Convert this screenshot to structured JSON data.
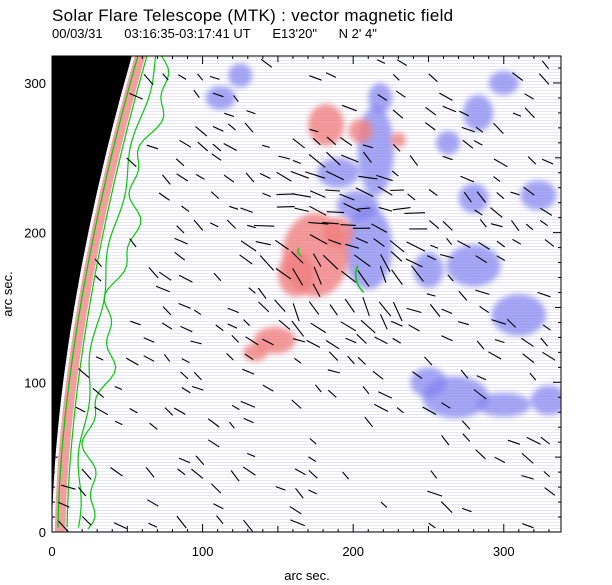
{
  "header": {
    "title": "Solar Flare Telescope (MTK) : vector magnetic field",
    "date": "00/03/31",
    "time_range": "03:16:35-03:17:41 UT",
    "position_e": "E13'20\"",
    "position_n": "N 2' 4\""
  },
  "chart_data": {
    "type": "heatmap",
    "title": "Solar Flare Telescope (MTK) : vector magnetic field",
    "xlabel": "arc sec.",
    "ylabel": "arc sec.",
    "xlim": [
      0,
      338
    ],
    "ylim": [
      0,
      318
    ],
    "x_ticks": [
      0,
      100,
      200,
      300
    ],
    "y_ticks": [
      0,
      100,
      200,
      300
    ],
    "colors": {
      "positive_polarity": "#f08080",
      "negative_polarity": "#8080f0",
      "contour": "#00cc00",
      "off_disk": "#000000",
      "vector": "#000000"
    },
    "positive_regions": [
      {
        "x": 175,
        "y": 185,
        "rx": 22,
        "ry": 28
      },
      {
        "x": 162,
        "y": 172,
        "rx": 12,
        "ry": 15
      },
      {
        "x": 190,
        "y": 200,
        "rx": 10,
        "ry": 10
      },
      {
        "x": 148,
        "y": 128,
        "rx": 14,
        "ry": 9
      },
      {
        "x": 135,
        "y": 120,
        "rx": 8,
        "ry": 6
      },
      {
        "x": 182,
        "y": 272,
        "rx": 12,
        "ry": 14
      },
      {
        "x": 205,
        "y": 268,
        "rx": 8,
        "ry": 8
      },
      {
        "x": 230,
        "y": 262,
        "rx": 5,
        "ry": 5
      }
    ],
    "negative_regions": [
      {
        "x": 210,
        "y": 190,
        "rx": 16,
        "ry": 28
      },
      {
        "x": 203,
        "y": 218,
        "rx": 14,
        "ry": 10
      },
      {
        "x": 215,
        "y": 255,
        "rx": 12,
        "ry": 30
      },
      {
        "x": 218,
        "y": 290,
        "rx": 8,
        "ry": 10
      },
      {
        "x": 190,
        "y": 240,
        "rx": 14,
        "ry": 10
      },
      {
        "x": 268,
        "y": 90,
        "rx": 22,
        "ry": 14
      },
      {
        "x": 250,
        "y": 100,
        "rx": 12,
        "ry": 10
      },
      {
        "x": 300,
        "y": 85,
        "rx": 18,
        "ry": 8
      },
      {
        "x": 330,
        "y": 88,
        "rx": 12,
        "ry": 10
      },
      {
        "x": 310,
        "y": 145,
        "rx": 18,
        "ry": 14
      },
      {
        "x": 280,
        "y": 178,
        "rx": 18,
        "ry": 14
      },
      {
        "x": 250,
        "y": 175,
        "rx": 10,
        "ry": 12
      },
      {
        "x": 323,
        "y": 225,
        "rx": 12,
        "ry": 10
      },
      {
        "x": 280,
        "y": 223,
        "rx": 10,
        "ry": 10
      },
      {
        "x": 283,
        "y": 280,
        "rx": 10,
        "ry": 12
      },
      {
        "x": 263,
        "y": 260,
        "rx": 8,
        "ry": 8
      },
      {
        "x": 112,
        "y": 290,
        "rx": 10,
        "ry": 8
      },
      {
        "x": 125,
        "y": 305,
        "rx": 8,
        "ry": 8
      },
      {
        "x": 300,
        "y": 300,
        "rx": 10,
        "ry": 8
      }
    ]
  }
}
